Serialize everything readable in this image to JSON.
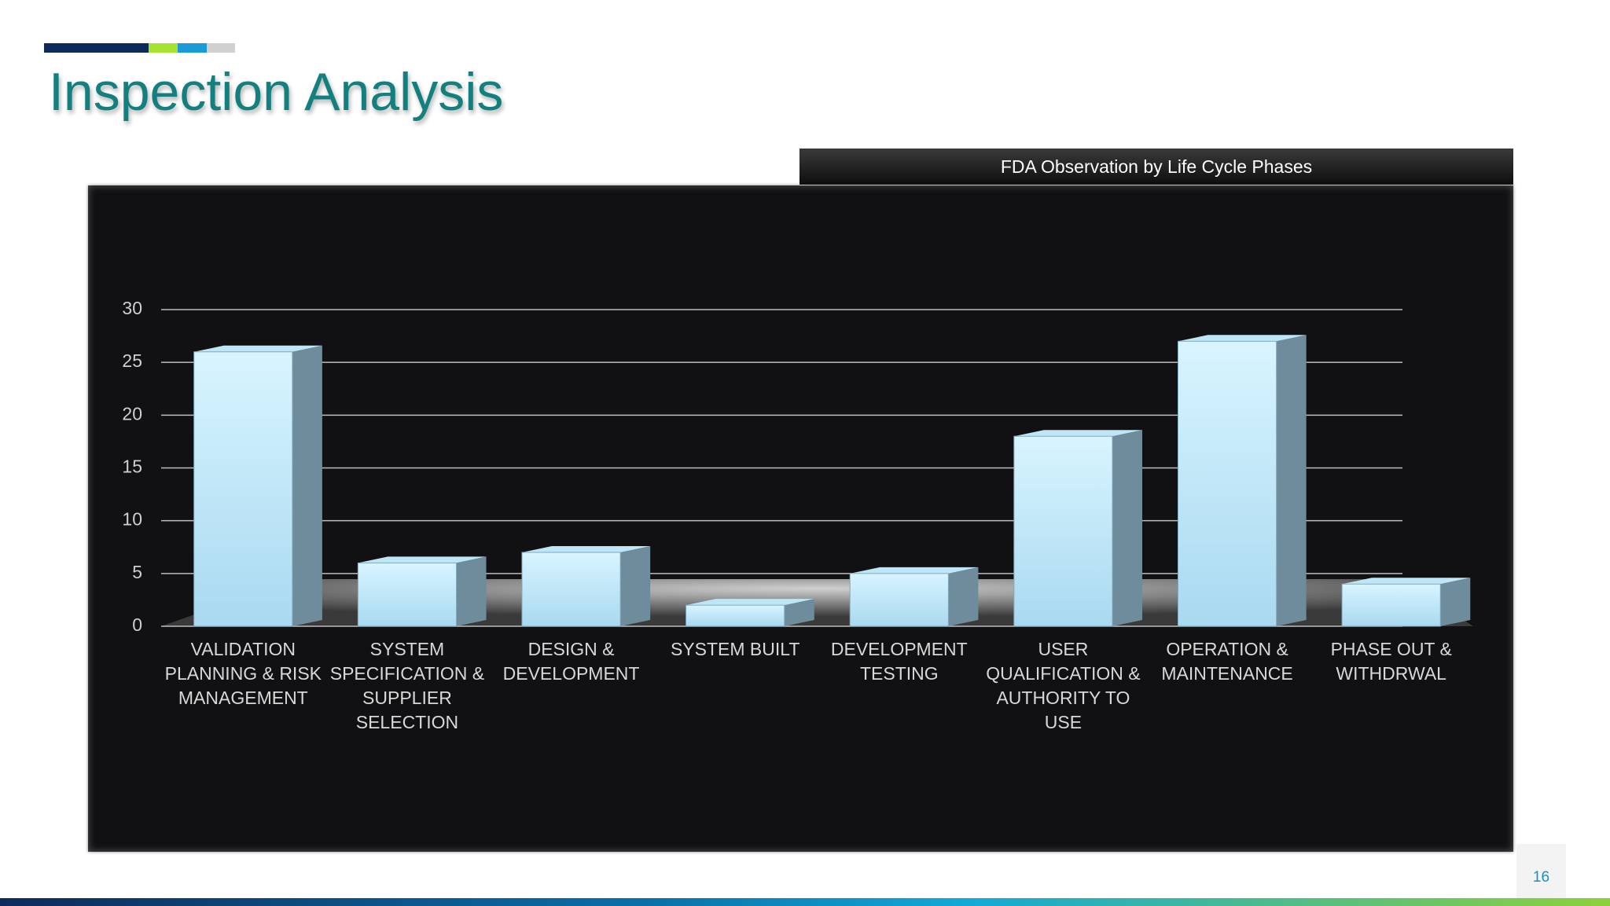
{
  "slide": {
    "title": "Inspection Analysis",
    "page_number": "16"
  },
  "chart_data": {
    "type": "bar",
    "title": "FDA Observation by Life Cycle Phases",
    "categories": [
      "VALIDATION PLANNING & RISK MANAGEMENT",
      "SYSTEM SPECIFICATION & SUPPLIER SELECTION",
      "DESIGN & DEVELOPMENT",
      "SYSTEM BUILT",
      "DEVELOPMENT TESTING",
      "USER QUALIFICATION & AUTHORITY TO USE",
      "OPERATION & MAINTENANCE",
      "PHASE OUT & WITHDRWAL"
    ],
    "values": [
      26,
      6,
      7,
      2,
      5,
      18,
      27,
      4
    ],
    "color": "#a9d9f0",
    "ylim": [
      0,
      30
    ],
    "yticks": [
      0,
      5,
      10,
      15,
      20,
      25,
      30
    ],
    "grid": true
  }
}
